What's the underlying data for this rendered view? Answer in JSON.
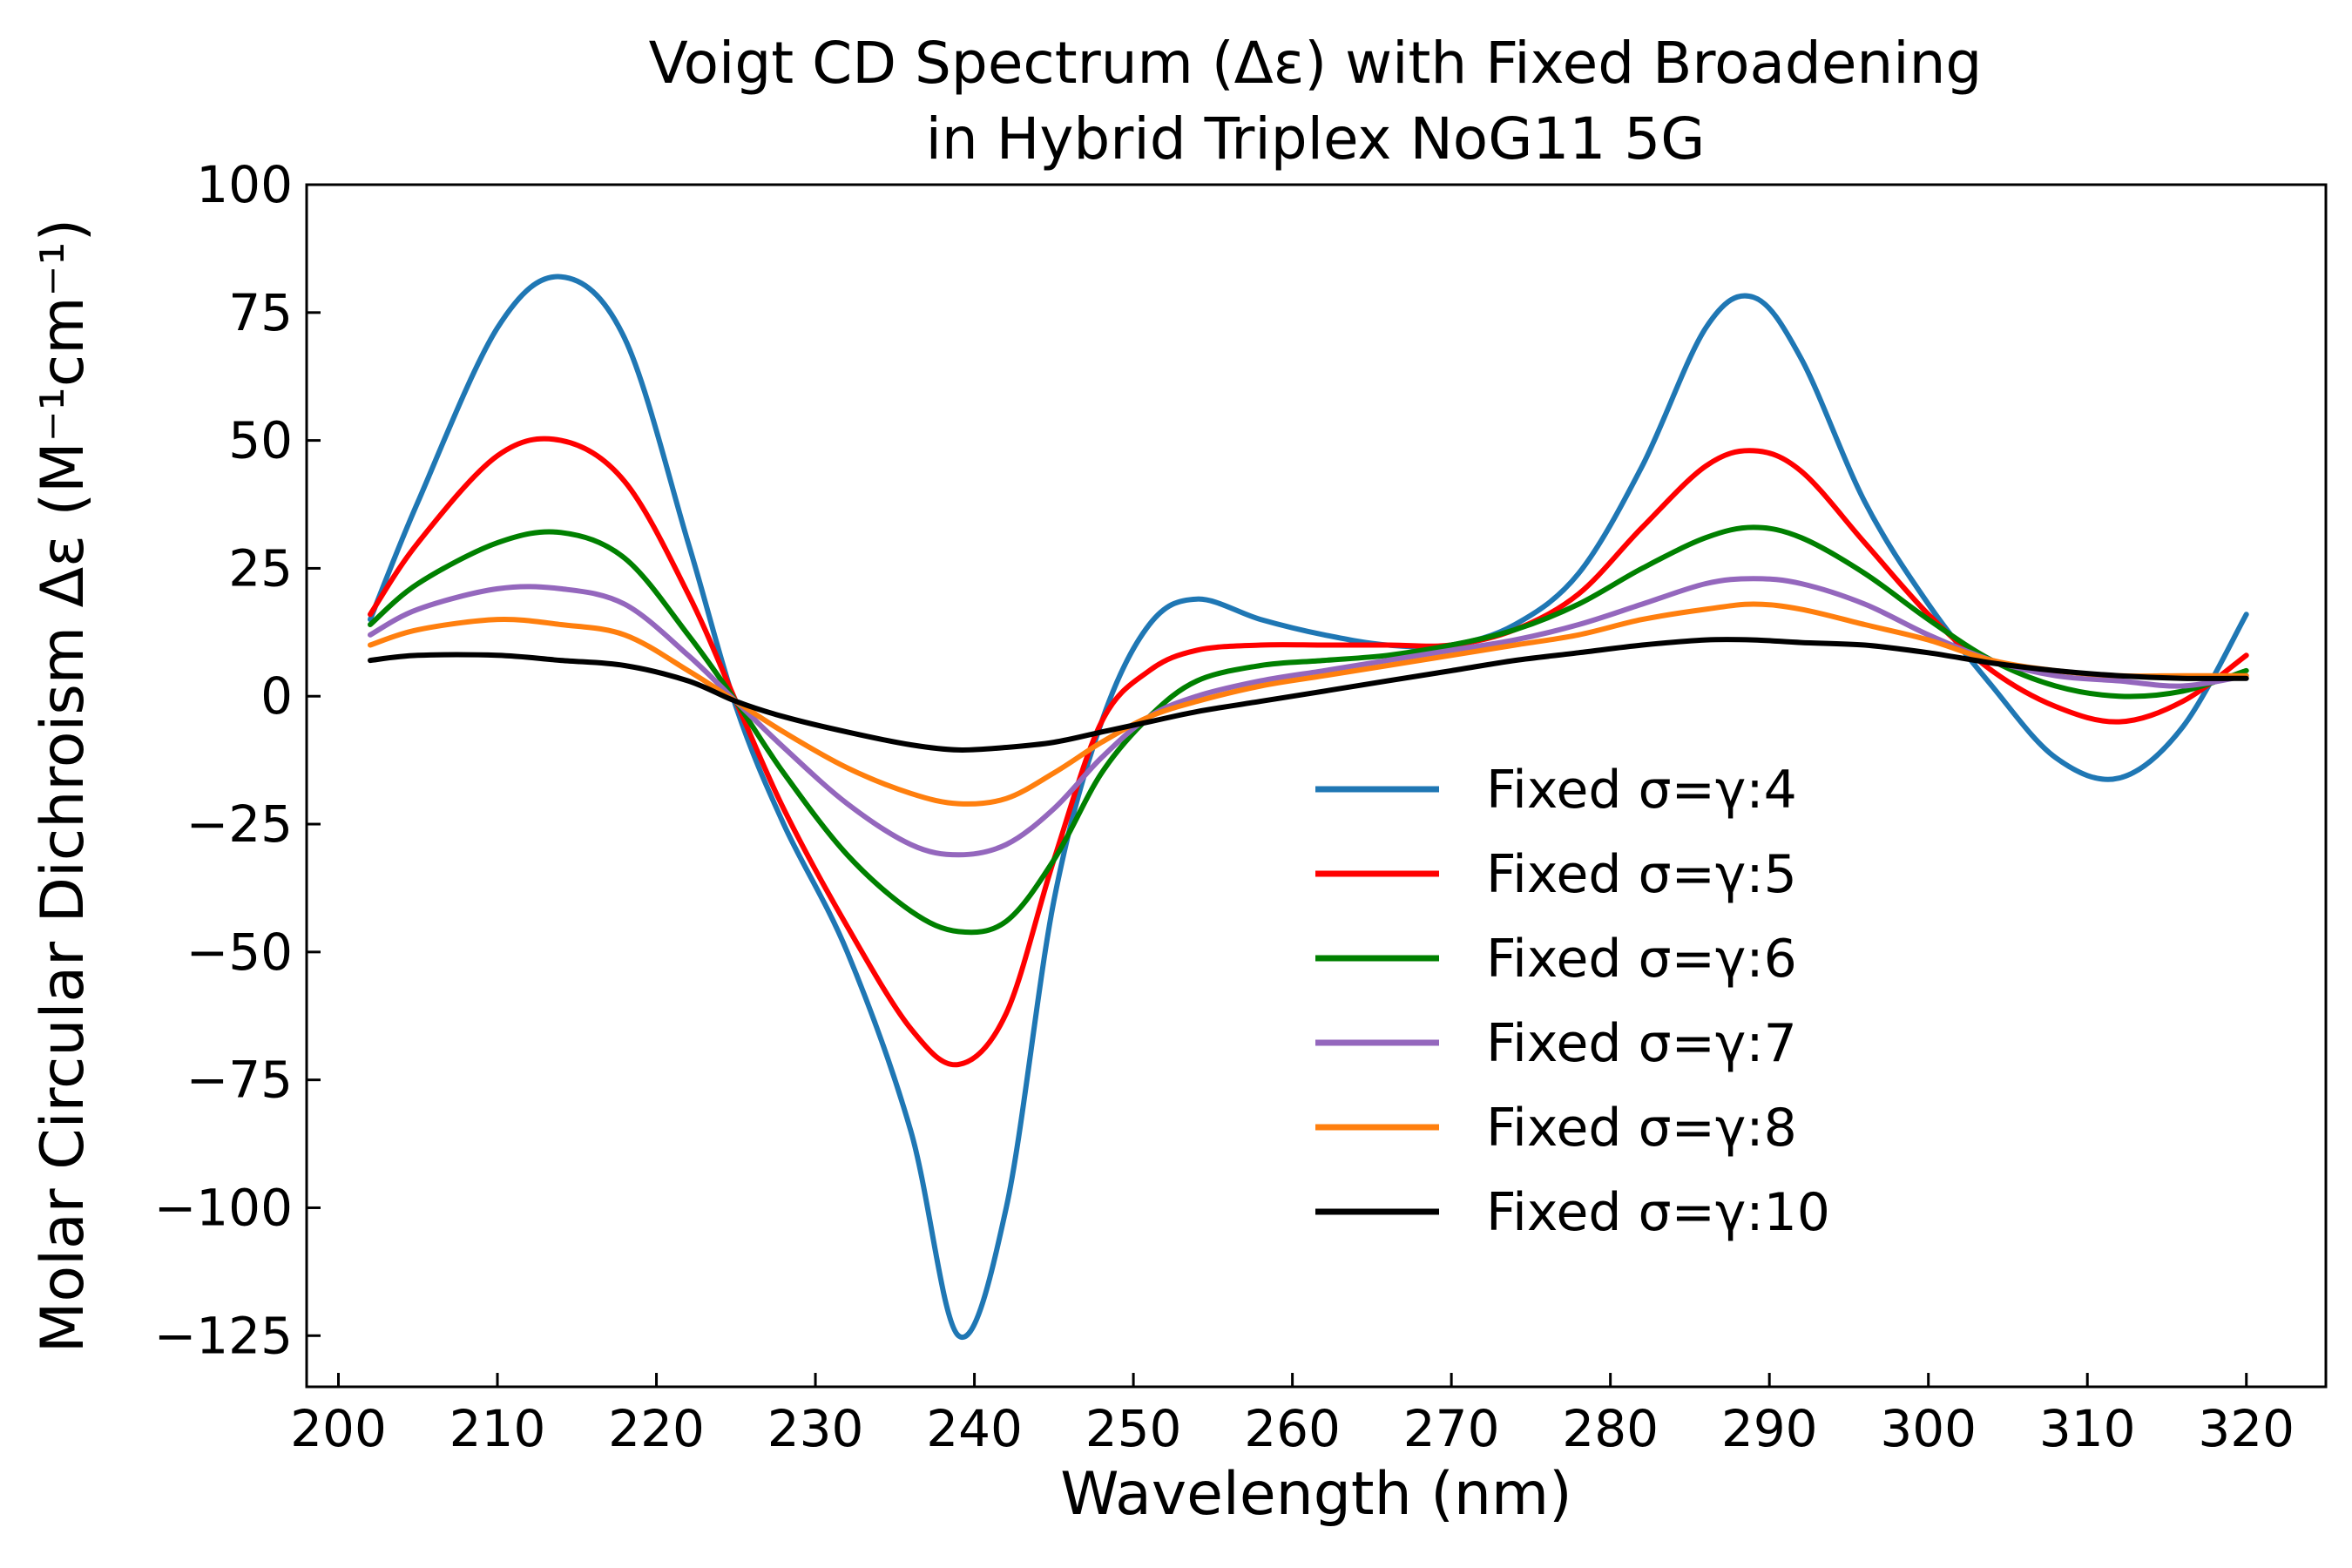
{
  "chart_data": {
    "type": "line",
    "title_lines": [
      "Voigt CD Spectrum (Δε) with Fixed Broadening",
      "in Hybrid Triplex NoG11 5G"
    ],
    "xlabel": "Wavelength (nm)",
    "ylabel": "Molar Circular Dichroism Δε (M⁻¹cm⁻¹)",
    "xlim": [
      198,
      325
    ],
    "ylim": [
      -135,
      100
    ],
    "xticks": [
      200,
      210,
      220,
      230,
      240,
      250,
      260,
      270,
      280,
      290,
      300,
      310,
      320
    ],
    "yticks": [
      100,
      75,
      50,
      25,
      0,
      -25,
      -50,
      -75,
      -100,
      -125
    ],
    "ytick_labels": [
      "100",
      "75",
      "50",
      "25",
      "0",
      "−25",
      "−50",
      "−75",
      "−100",
      "−125"
    ],
    "grid": false,
    "legend_position": "center-right",
    "x": [
      202,
      205,
      210,
      214,
      218,
      222,
      225,
      228,
      232,
      236,
      239,
      242,
      245,
      248,
      251,
      254,
      258,
      262,
      266,
      270,
      274,
      278,
      282,
      286,
      289,
      292,
      296,
      300,
      304,
      308,
      312,
      316,
      320
    ],
    "series": [
      {
        "name": "Fixed σ=γ:4",
        "color": "#1f77b4",
        "values": [
          15,
          38,
          72,
          82,
          70,
          30,
          -2,
          -25,
          -50,
          -85,
          -125,
          -100,
          -40,
          -5,
          14,
          19,
          15,
          12,
          10,
          10,
          14,
          24,
          45,
          72,
          78,
          66,
          38,
          18,
          2,
          -12,
          -16,
          -6,
          16
        ]
      },
      {
        "name": "Fixed σ=γ:5",
        "color": "#ff0000",
        "values": [
          16,
          30,
          47,
          50,
          42,
          20,
          -1,
          -22,
          -45,
          -65,
          -72,
          -62,
          -32,
          -5,
          5,
          9,
          10,
          10,
          10,
          10,
          13,
          20,
          33,
          45,
          48,
          44,
          30,
          16,
          5,
          -2,
          -5,
          -1,
          8
        ]
      },
      {
        "name": "Fixed σ=γ:6",
        "color": "#008000",
        "values": [
          14,
          22,
          30,
          32,
          27,
          12,
          -1,
          -15,
          -31,
          -42,
          -46,
          -44,
          -32,
          -15,
          -4,
          3,
          6,
          7,
          8,
          10,
          13,
          18,
          25,
          31,
          33,
          31,
          24,
          15,
          7,
          2,
          0,
          1,
          5
        ]
      },
      {
        "name": "Fixed σ=γ:7",
        "color": "#9467bd",
        "values": [
          12,
          17,
          21,
          21,
          18,
          8,
          -1,
          -10,
          -21,
          -29,
          -31,
          -29,
          -22,
          -12,
          -4,
          0,
          3,
          5,
          7,
          9,
          11,
          14,
          18,
          22,
          23,
          22,
          18,
          12,
          7,
          4,
          3,
          2,
          4
        ]
      },
      {
        "name": "Fixed σ=γ:8",
        "color": "#ff7f0e",
        "values": [
          10,
          13,
          15,
          14,
          12,
          5,
          -1,
          -7,
          -14,
          -19,
          -21,
          -20,
          -15,
          -9,
          -4,
          -1,
          2,
          4,
          6,
          8,
          10,
          12,
          15,
          17,
          18,
          17,
          14,
          11,
          7,
          5,
          4,
          4,
          4
        ]
      },
      {
        "name": "Fixed σ=γ:10",
        "color": "#000000",
        "values": [
          7,
          8,
          8,
          7,
          6,
          3,
          -1,
          -4,
          -7,
          -9.5,
          -10.5,
          -10,
          -9,
          -7,
          -5,
          -3,
          -1,
          1,
          3,
          5,
          7,
          8.5,
          10,
          11,
          11,
          10.5,
          10,
          8.5,
          6.5,
          5,
          4,
          3.5,
          3.5
        ]
      }
    ]
  }
}
